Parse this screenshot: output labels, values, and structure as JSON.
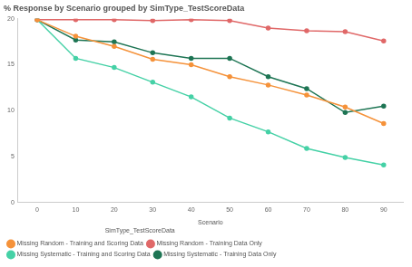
{
  "chart_data": {
    "type": "line",
    "title": "% Response by Scenario grouped by SimType_TestScoreData",
    "x_label": "Scenario",
    "legend_title": "SimType_TestScoreData",
    "categories": [
      "0",
      "10",
      "20",
      "30",
      "40",
      "50",
      "60",
      "70",
      "80",
      "90"
    ],
    "series": [
      {
        "name": "Missing Random - Training and Scoring Data",
        "color": "#f5923a",
        "values": [
          19.9,
          18.1,
          17.0,
          15.6,
          15.0,
          13.7,
          12.8,
          11.7,
          10.4,
          8.6
        ]
      },
      {
        "name": "Missing Random - Training Data Only",
        "color": "#e06868",
        "values": [
          19.9,
          19.9,
          19.9,
          19.8,
          19.9,
          19.8,
          19.0,
          18.7,
          18.6,
          17.6
        ]
      },
      {
        "name": "Missing Systematic - Training and Scoring Data",
        "color": "#45d1a6",
        "values": [
          19.9,
          15.7,
          14.7,
          13.1,
          11.5,
          9.2,
          7.7,
          5.9,
          4.9,
          4.1
        ]
      },
      {
        "name": "Missing Systematic - Training Data Only",
        "color": "#1e7554",
        "values": [
          19.9,
          17.7,
          17.5,
          16.3,
          15.7,
          15.7,
          13.7,
          12.4,
          9.8,
          10.5
        ]
      }
    ],
    "ylim": [
      0,
      20
    ],
    "yticks": [
      0,
      5,
      10,
      15,
      20
    ],
    "grid": false,
    "legend": "bottom",
    "marker": "circle"
  }
}
